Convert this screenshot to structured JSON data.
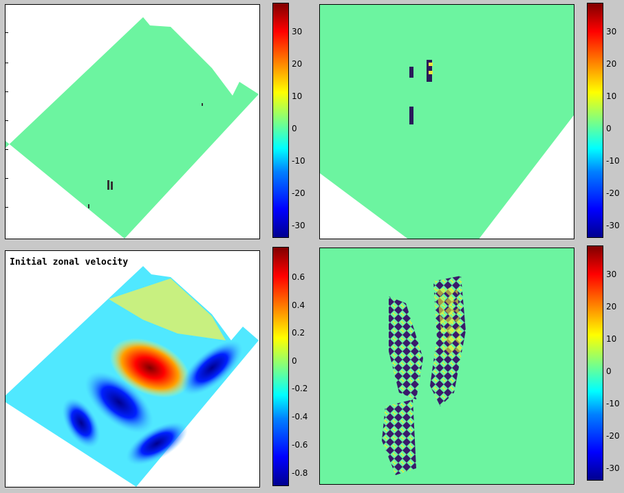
{
  "colors": {
    "figure_bg": "#c8c8c8",
    "field_bg": "#6cf4a0",
    "colormap": "jet"
  },
  "chart_data": [
    {
      "type": "heatmap",
      "title": "",
      "xlabel": "",
      "ylabel": "",
      "colorbar": {
        "ticks": [
          30,
          20,
          10,
          0,
          -10,
          -20,
          -30
        ],
        "clim": [
          -33,
          38
        ]
      }
    },
    {
      "type": "heatmap",
      "title": "",
      "xlabel": "",
      "ylabel": "",
      "colorbar": {
        "ticks": [
          30,
          20,
          10,
          0,
          -10,
          -20,
          -30
        ],
        "clim": [
          -33,
          38
        ]
      }
    },
    {
      "type": "heatmap",
      "title": "Initial zonal velocity",
      "xlabel": "",
      "ylabel": "",
      "colorbar": {
        "ticks": [
          0.6,
          0.4,
          0.2,
          0,
          -0.2,
          -0.4,
          -0.6,
          -0.8
        ],
        "clim": [
          -0.87,
          0.8
        ]
      }
    },
    {
      "type": "heatmap",
      "title": "",
      "xlabel": "",
      "ylabel": "",
      "colorbar": {
        "ticks": [
          30,
          20,
          10,
          0,
          -10,
          -20,
          -30
        ],
        "clim": [
          -33,
          38
        ]
      }
    }
  ]
}
